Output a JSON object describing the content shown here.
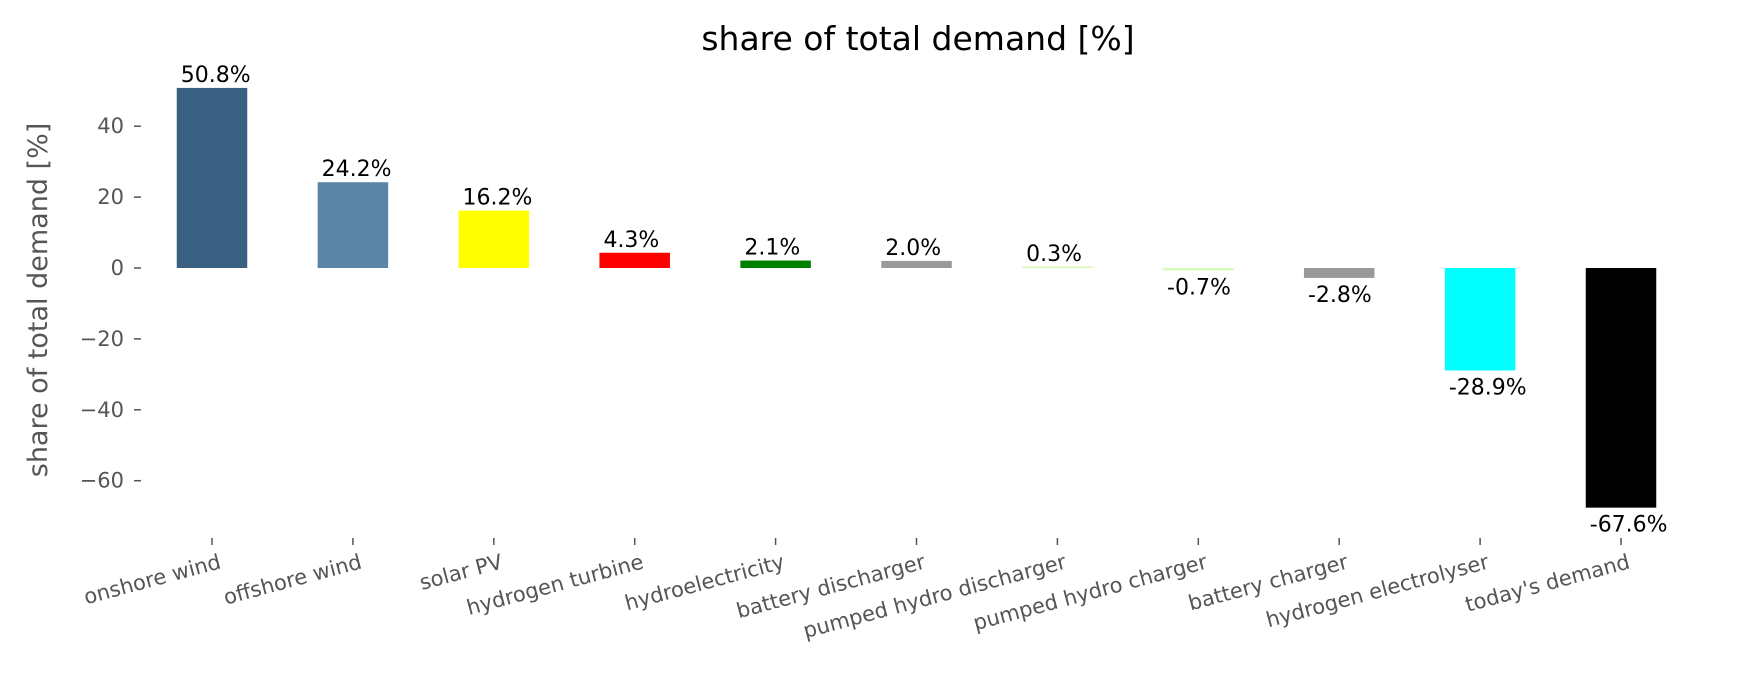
{
  "chart_data": {
    "type": "bar",
    "title": "share of total demand [%]",
    "xlabel": "",
    "ylabel": "share of total demand [%]",
    "ylim": [
      -74,
      56
    ],
    "yticks": [
      40,
      20,
      0,
      -20,
      -40,
      -60
    ],
    "ytick_labels": [
      "40",
      "20",
      "0",
      "−20",
      "−40",
      "−60"
    ],
    "grid": false,
    "categories": [
      "onshore wind",
      "offshore wind",
      "solar PV",
      "hydrogen turbine",
      "hydroelectricity",
      "battery discharger",
      "pumped hydro discharger",
      "pumped hydro charger",
      "battery charger",
      "hydrogen electrolyser",
      "today's demand"
    ],
    "values": [
      50.8,
      24.2,
      16.2,
      4.3,
      2.1,
      2.0,
      0.3,
      -0.7,
      -2.8,
      -28.9,
      -67.6
    ],
    "data_labels": [
      "50.8%",
      "24.2%",
      "16.2%",
      "4.3%",
      "2.1%",
      "2.0%",
      "0.3%",
      "-0.7%",
      "-2.8%",
      "-28.9%",
      "-67.6%"
    ],
    "colors": [
      "#3b6182",
      "#5b84a5",
      "#ffff00",
      "#ff0000",
      "#008000",
      "#999999",
      "#d8f9b8",
      "#d8f9b8",
      "#999999",
      "#00ffff",
      "#000000"
    ]
  }
}
